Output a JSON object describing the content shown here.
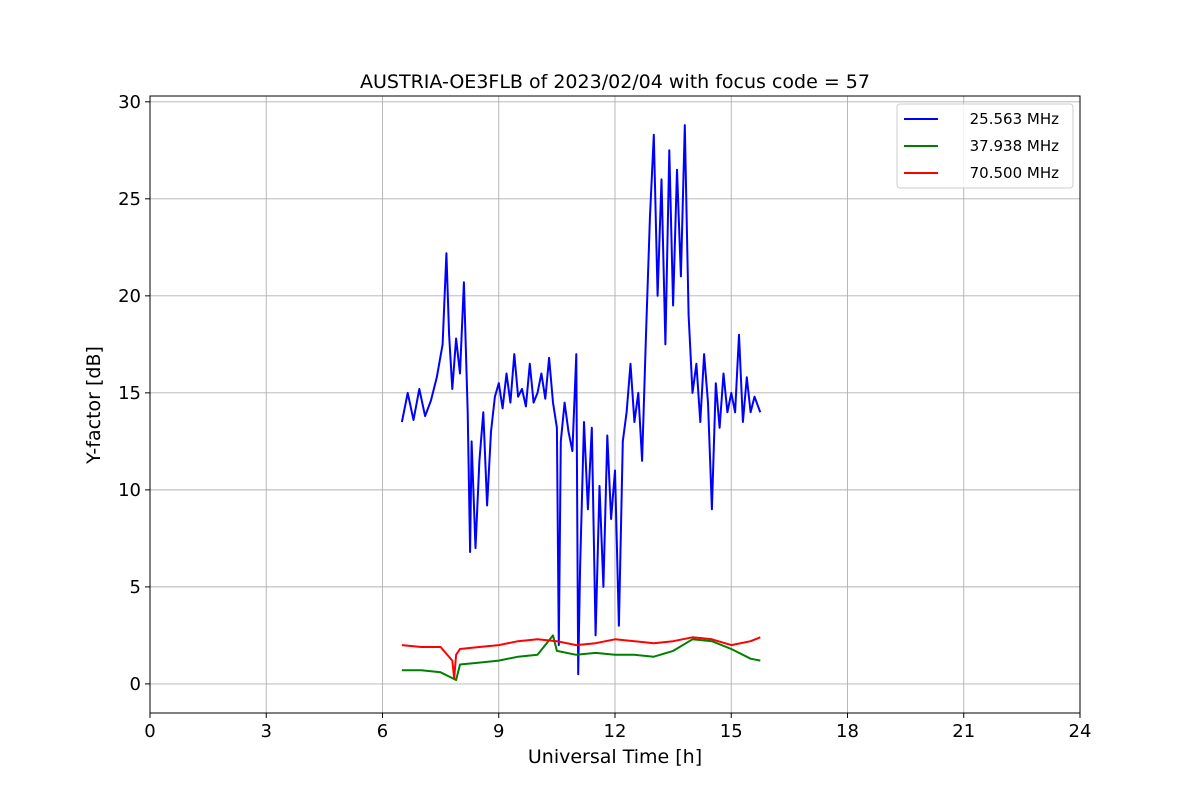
{
  "chart_data": {
    "type": "line",
    "title": "AUSTRIA-OE3FLB of 2023/02/04 with focus code = 57",
    "xlabel": "Universal Time [h]",
    "ylabel": "Y-factor [dB]",
    "xlim": [
      0,
      24
    ],
    "ylim": [
      -1.5,
      30.3
    ],
    "xticks": [
      0,
      3,
      6,
      9,
      12,
      15,
      18,
      21,
      24
    ],
    "xtick_labels": [
      "0",
      "3",
      "6",
      "9",
      "12",
      "15",
      "18",
      "21",
      "24"
    ],
    "yticks": [
      0,
      5,
      10,
      15,
      20,
      25,
      30
    ],
    "ytick_labels": [
      "0",
      "5",
      "10",
      "15",
      "20",
      "25",
      "30"
    ],
    "grid": true,
    "legend_position": "top-right",
    "series": [
      {
        "name": "25.563 MHz",
        "color": "#0000ff",
        "x": [
          6.5,
          6.65,
          6.8,
          6.95,
          7.1,
          7.25,
          7.4,
          7.55,
          7.65,
          7.72,
          7.8,
          7.9,
          8.0,
          8.1,
          8.2,
          8.26,
          8.3,
          8.4,
          8.5,
          8.6,
          8.7,
          8.8,
          8.9,
          9.0,
          9.1,
          9.2,
          9.3,
          9.4,
          9.5,
          9.6,
          9.7,
          9.8,
          9.9,
          10.0,
          10.1,
          10.2,
          10.3,
          10.4,
          10.5,
          10.55,
          10.6,
          10.7,
          10.8,
          10.9,
          11.0,
          11.05,
          11.1,
          11.2,
          11.3,
          11.4,
          11.5,
          11.6,
          11.7,
          11.8,
          11.9,
          12.0,
          12.1,
          12.2,
          12.3,
          12.4,
          12.5,
          12.6,
          12.7,
          12.8,
          12.9,
          13.0,
          13.1,
          13.2,
          13.3,
          13.4,
          13.5,
          13.6,
          13.7,
          13.8,
          13.9,
          14.0,
          14.1,
          14.2,
          14.3,
          14.4,
          14.5,
          14.6,
          14.7,
          14.8,
          14.9,
          15.0,
          15.1,
          15.2,
          15.3,
          15.4,
          15.5,
          15.6,
          15.75
        ],
        "y": [
          13.5,
          15.0,
          13.6,
          15.2,
          13.8,
          14.6,
          15.8,
          17.5,
          22.2,
          18.0,
          15.2,
          17.8,
          16.0,
          20.7,
          14.0,
          6.8,
          12.5,
          7.0,
          11.5,
          14.0,
          9.2,
          13.0,
          14.8,
          15.5,
          14.2,
          16.0,
          14.5,
          17.0,
          14.8,
          15.2,
          14.3,
          16.5,
          14.5,
          15.0,
          16.0,
          14.7,
          16.8,
          14.5,
          13.2,
          2.0,
          12.5,
          14.5,
          13.0,
          12.0,
          17.0,
          0.5,
          6.0,
          13.5,
          9.0,
          13.2,
          2.5,
          10.2,
          5.0,
          12.8,
          8.5,
          11.0,
          3.0,
          12.5,
          14.0,
          16.5,
          13.5,
          15.0,
          11.5,
          18.0,
          24.0,
          28.3,
          20.0,
          26.0,
          17.5,
          27.5,
          19.5,
          26.5,
          21.0,
          28.8,
          19.0,
          15.0,
          16.5,
          13.5,
          17.0,
          14.5,
          9.0,
          15.5,
          13.2,
          16.0,
          14.0,
          15.0,
          14.0,
          18.0,
          13.5,
          15.8,
          14.0,
          14.8,
          14.0
        ]
      },
      {
        "name": "37.938 MHz",
        "color": "#008000",
        "x": [
          6.5,
          7.0,
          7.5,
          7.8,
          7.9,
          8.0,
          8.5,
          9.0,
          9.5,
          10.0,
          10.4,
          10.5,
          11.0,
          11.5,
          12.0,
          12.5,
          13.0,
          13.5,
          14.0,
          14.5,
          15.0,
          15.5,
          15.75
        ],
        "y": [
          0.7,
          0.7,
          0.6,
          0.3,
          0.2,
          1.0,
          1.1,
          1.2,
          1.4,
          1.5,
          2.5,
          1.7,
          1.5,
          1.6,
          1.5,
          1.5,
          1.4,
          1.7,
          2.3,
          2.2,
          1.8,
          1.3,
          1.2
        ]
      },
      {
        "name": "70.500 MHz",
        "color": "#ff0000",
        "x": [
          6.5,
          7.0,
          7.5,
          7.8,
          7.85,
          7.9,
          8.0,
          8.5,
          9.0,
          9.5,
          10.0,
          10.5,
          11.0,
          11.5,
          12.0,
          12.5,
          13.0,
          13.5,
          14.0,
          14.5,
          15.0,
          15.5,
          15.75
        ],
        "y": [
          2.0,
          1.9,
          1.9,
          1.2,
          0.3,
          1.5,
          1.8,
          1.9,
          2.0,
          2.2,
          2.3,
          2.2,
          2.0,
          2.1,
          2.3,
          2.2,
          2.1,
          2.2,
          2.4,
          2.3,
          2.0,
          2.2,
          2.4
        ]
      }
    ]
  }
}
